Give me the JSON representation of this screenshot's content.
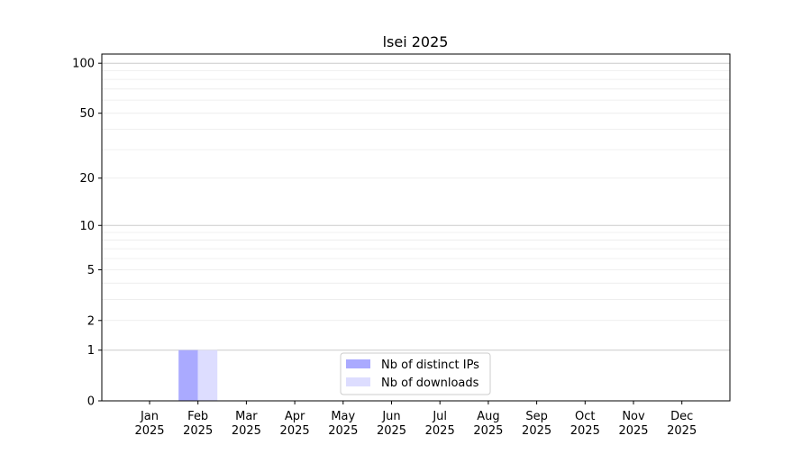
{
  "chart_data": {
    "type": "bar",
    "title": "lsei 2025",
    "xlabel": "",
    "ylabel": "",
    "yscale": "log(1+y)",
    "ylim": [
      0,
      113
    ],
    "yticks": [
      0,
      1,
      2,
      5,
      10,
      20,
      50,
      100
    ],
    "y_major_grid": [
      1,
      10,
      100
    ],
    "y_minor_grid": [
      2,
      3,
      4,
      5,
      6,
      7,
      8,
      9,
      20,
      30,
      40,
      50,
      60,
      70,
      80,
      90
    ],
    "grid": true,
    "legend_placement": "lower-center",
    "categories": [
      "Jan\n2025",
      "Feb\n2025",
      "Mar\n2025",
      "Apr\n2025",
      "May\n2025",
      "Jun\n2025",
      "Jul\n2025",
      "Aug\n2025",
      "Sep\n2025",
      "Oct\n2025",
      "Nov\n2025",
      "Dec\n2025"
    ],
    "series": [
      {
        "name": "Nb of distinct IPs",
        "color": "#aaaaff",
        "values": [
          0,
          1,
          0,
          0,
          0,
          0,
          0,
          0,
          0,
          0,
          0,
          0
        ]
      },
      {
        "name": "Nb of downloads",
        "color": "#ddddff",
        "values": [
          0,
          1,
          0,
          0,
          0,
          0,
          0,
          0,
          0,
          0,
          0,
          0
        ]
      }
    ]
  }
}
